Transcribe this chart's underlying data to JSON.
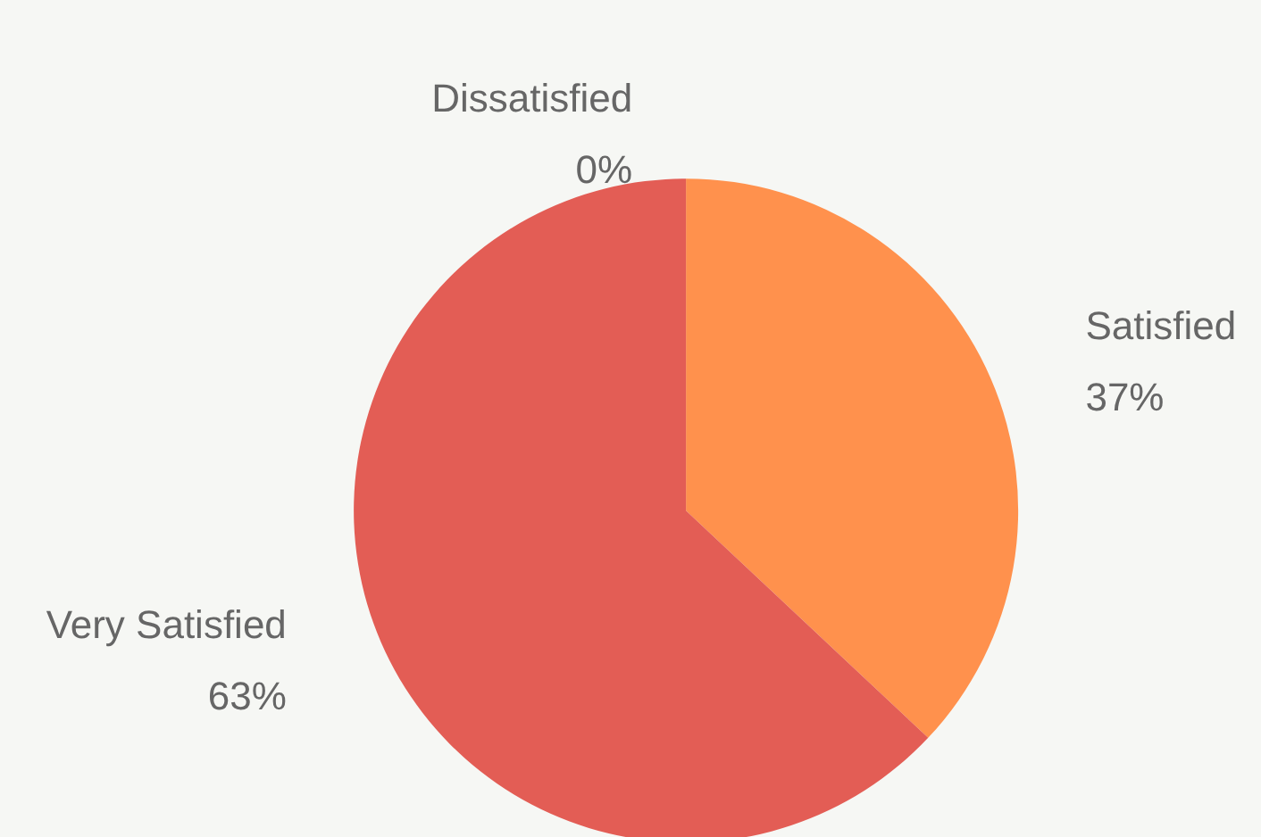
{
  "chart_data": {
    "type": "pie",
    "categories": [
      "Dissatisfied",
      "Satisfied",
      "Very Satisfied"
    ],
    "values": [
      0,
      37,
      63
    ],
    "colors": [
      "#c9463d",
      "#ff914d",
      "#e35d55"
    ],
    "value_labels": [
      "0%",
      "37%",
      "63%"
    ],
    "legend": false
  }
}
